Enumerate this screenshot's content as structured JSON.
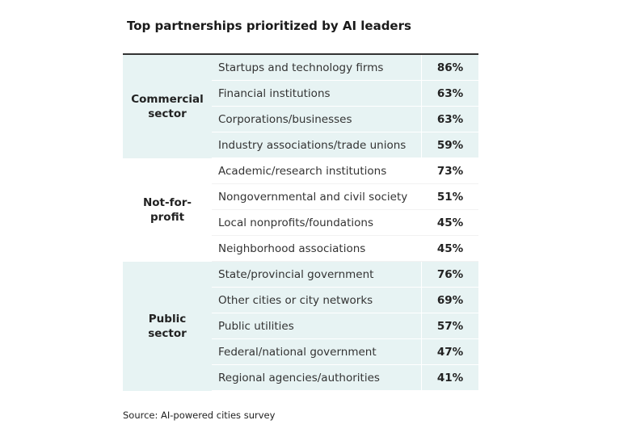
{
  "title": "Top partnerships prioritized by AI leaders",
  "groups": [
    {
      "label": "Commercial sector",
      "rows": [
        [
          "Startups and technology firms",
          "86%"
        ],
        [
          "Financial institutions",
          "63%"
        ],
        [
          "Corporations/businesses",
          "63%"
        ],
        [
          "Industry associations/trade unions",
          "59%"
        ]
      ]
    },
    {
      "label": "Not-for-profit",
      "rows": [
        [
          "Academic/research institutions",
          "73%"
        ],
        [
          "Nongovernmental and civil society",
          "51%"
        ],
        [
          "Local nonprofits/foundations",
          "45%"
        ],
        [
          "Neighborhood associations",
          "45%"
        ]
      ]
    },
    {
      "label": "Public sector",
      "rows": [
        [
          "State/provincial government",
          "76%"
        ],
        [
          "Other cities or city networks",
          "69%"
        ],
        [
          "Public utilities",
          "57%"
        ],
        [
          "Federal/national government",
          "47%"
        ],
        [
          "Regional agencies/authorities",
          "41%"
        ]
      ]
    }
  ],
  "source": "Source: AI-powered cities survey"
}
